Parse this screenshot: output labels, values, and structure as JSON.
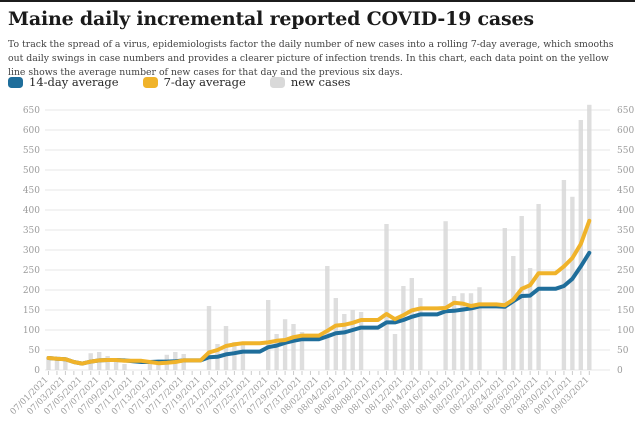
{
  "page": {
    "top_bar_color": "#1c1c1c",
    "background": "#ffffff"
  },
  "header": {
    "title": "Maine daily incremental reported COVID-19 cases",
    "description": "To track the spread of a virus, epidemiologists factor the daily number of new cases into a rolling 7-day average, which smooths out daily swings in case numbers and provides a clearer picture of infection trends. In this chart, each data point on the yellow line shows the average number of new cases for that day and the previous six days."
  },
  "legend": [
    {
      "label": "14-day average",
      "color": "#1f6e9b"
    },
    {
      "label": "7-day average",
      "color": "#f0b32a"
    },
    {
      "label": "new cases",
      "color": "#d9d9d9"
    }
  ],
  "colors": {
    "grid": "#e7e7e7",
    "axis_text": "#9b9b9b",
    "bar": "#d9d9d9",
    "line_14day": "#1f6e9b",
    "line_7day": "#f0b32a"
  },
  "chart_data": {
    "type": "bar",
    "title": "Maine daily incremental reported COVID-19 cases",
    "xlabel": "",
    "ylabel": "",
    "ylim": [
      0,
      650
    ],
    "y_tick_step": 50,
    "y_axis_sides": "both",
    "grid": true,
    "legend_position": "top",
    "x_label_every": 2,
    "categories": [
      "07/01/2021",
      "07/02/2021",
      "07/03/2021",
      "07/04/2021",
      "07/05/2021",
      "07/06/2021",
      "07/07/2021",
      "07/08/2021",
      "07/09/2021",
      "07/10/2021",
      "07/11/2021",
      "07/12/2021",
      "07/13/2021",
      "07/14/2021",
      "07/15/2021",
      "07/16/2021",
      "07/17/2021",
      "07/18/2021",
      "07/19/2021",
      "07/20/2021",
      "07/21/2021",
      "07/22/2021",
      "07/23/2021",
      "07/24/2021",
      "07/25/2021",
      "07/26/2021",
      "07/27/2021",
      "07/28/2021",
      "07/29/2021",
      "07/30/2021",
      "07/31/2021",
      "08/01/2021",
      "08/02/2021",
      "08/03/2021",
      "08/04/2021",
      "08/05/2021",
      "08/06/2021",
      "08/07/2021",
      "08/08/2021",
      "08/09/2021",
      "08/10/2021",
      "08/11/2021",
      "08/12/2021",
      "08/13/2021",
      "08/14/2021",
      "08/15/2021",
      "08/16/2021",
      "08/17/2021",
      "08/18/2021",
      "08/19/2021",
      "08/20/2021",
      "08/21/2021",
      "08/22/2021",
      "08/23/2021",
      "08/24/2021",
      "08/25/2021",
      "08/26/2021",
      "08/27/2021",
      "08/28/2021",
      "08/29/2021",
      "08/30/2021",
      "08/31/2021",
      "09/01/2021",
      "09/02/2021",
      "09/03/2021"
    ],
    "series": [
      {
        "name": "new cases",
        "type": "bar",
        "color": "#d9d9d9",
        "values": [
          30,
          26,
          25,
          0,
          0,
          42,
          45,
          35,
          25,
          15,
          0,
          0,
          20,
          25,
          38,
          45,
          40,
          0,
          0,
          160,
          65,
          110,
          70,
          65,
          0,
          0,
          175,
          90,
          127,
          115,
          95,
          0,
          0,
          260,
          180,
          140,
          150,
          145,
          0,
          0,
          365,
          90,
          210,
          230,
          180,
          0,
          0,
          372,
          185,
          192,
          192,
          207,
          0,
          0,
          355,
          285,
          385,
          255,
          415,
          0,
          0,
          475,
          433,
          625,
          663
        ]
      },
      {
        "name": "14-day average",
        "type": "line",
        "color": "#1f6e9b",
        "values": [
          30,
          28,
          27,
          20,
          16,
          21,
          24,
          25,
          25,
          24,
          22,
          20,
          20,
          21,
          21,
          22,
          24,
          24,
          24,
          32,
          33,
          39,
          42,
          46,
          46,
          46,
          57,
          61,
          68,
          73,
          77,
          77,
          77,
          84,
          92,
          94,
          100,
          106,
          106,
          106,
          119,
          119,
          125,
          133,
          139,
          139,
          139,
          147,
          148,
          151,
          154,
          159,
          159,
          159,
          158,
          172,
          185,
          186,
          203,
          203,
          203,
          210,
          228,
          259,
          293
        ]
      },
      {
        "name": "7-day average",
        "type": "line",
        "color": "#f0b32a",
        "values": [
          30,
          28,
          27,
          20,
          16,
          21,
          24,
          25,
          25,
          23,
          23,
          23,
          20,
          17,
          18,
          20,
          24,
          24,
          24,
          44,
          50,
          60,
          64,
          67,
          67,
          67,
          69,
          73,
          75,
          82,
          86,
          86,
          86,
          98,
          111,
          113,
          118,
          125,
          125,
          125,
          140,
          127,
          137,
          149,
          154,
          154,
          154,
          155,
          168,
          166,
          160,
          164,
          164,
          164,
          162,
          176,
          203,
          212,
          242,
          242,
          242,
          259,
          280,
          315,
          373
        ]
      }
    ]
  }
}
